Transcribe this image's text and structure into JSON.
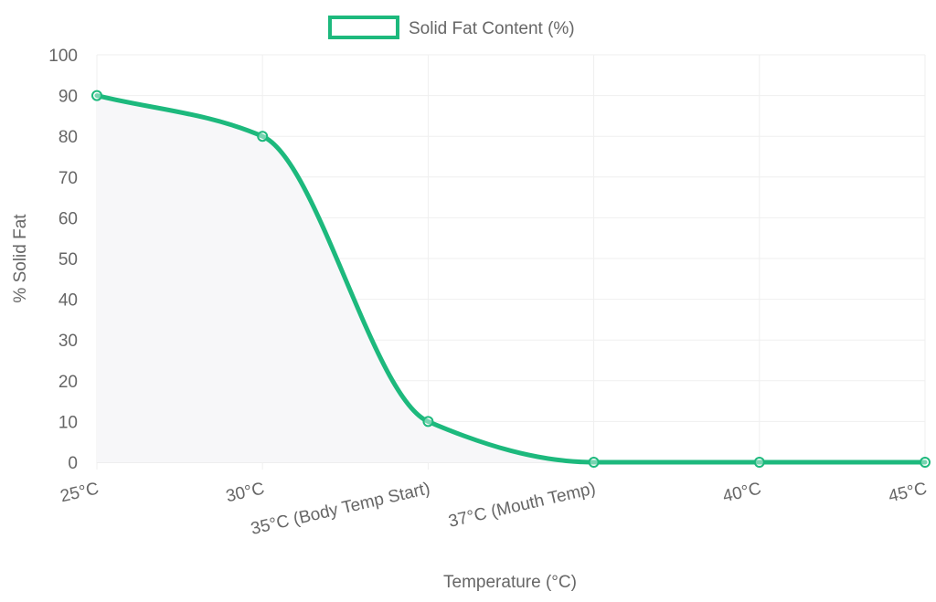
{
  "chart_data": {
    "type": "line",
    "categories": [
      "25°C",
      "30°C",
      "35°C (Body Temp Start)",
      "37°C (Mouth Temp)",
      "40°C",
      "45°C"
    ],
    "series": [
      {
        "name": "Solid Fat Content (%)",
        "values": [
          90,
          80,
          10,
          0,
          0,
          0
        ],
        "color": "#1db97d"
      }
    ],
    "xlabel": "Temperature (°C)",
    "ylabel": "% Solid Fat",
    "ylim": [
      0,
      100
    ],
    "yticks": [
      0,
      10,
      20,
      30,
      40,
      50,
      60,
      70,
      80,
      90,
      100
    ],
    "grid": true,
    "legend": "top-center",
    "smooth": true,
    "fill_color": "#f7f7f9"
  }
}
